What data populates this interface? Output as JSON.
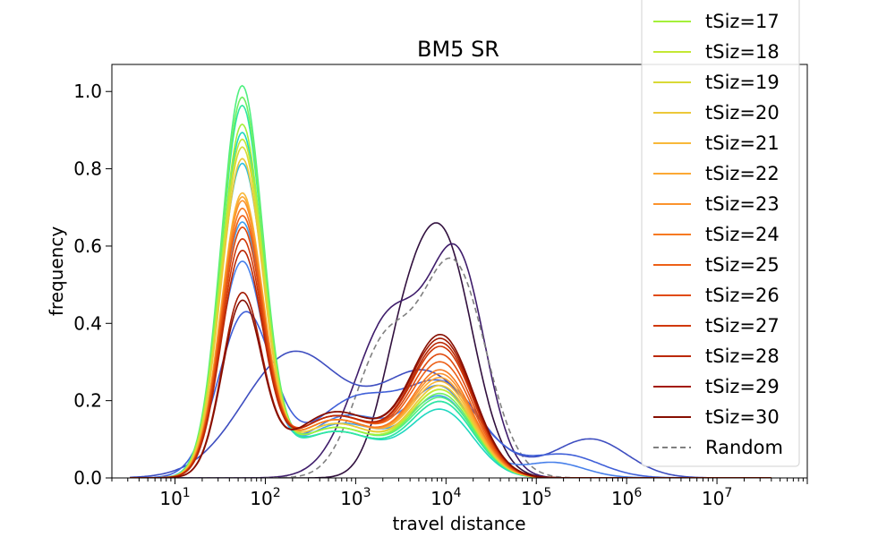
{
  "chart_data": {
    "type": "line",
    "title": "BM5 SR",
    "xlabel": "travel distance",
    "ylabel": "frequency",
    "xscale": "log",
    "xlim": [
      2,
      100000000
    ],
    "ylim": [
      0,
      1.07
    ],
    "x_ticks": [
      10,
      100,
      1000,
      10000,
      100000,
      1000000,
      10000000
    ],
    "x_tick_labels": [
      {
        "base": "10",
        "exp": "1"
      },
      {
        "base": "10",
        "exp": "2"
      },
      {
        "base": "10",
        "exp": "3"
      },
      {
        "base": "10",
        "exp": "4"
      },
      {
        "base": "10",
        "exp": "5"
      },
      {
        "base": "10",
        "exp": "6"
      },
      {
        "base": "10",
        "exp": "7"
      }
    ],
    "y_ticks": [
      0.0,
      0.2,
      0.4,
      0.6,
      0.8,
      1.0
    ],
    "y_tick_labels": [
      "0.0",
      "0.2",
      "0.4",
      "0.6",
      "0.8",
      "1.0"
    ],
    "grid": false,
    "legend_position": "top-right",
    "legend": [
      {
        "label": "tSiz=17",
        "color": "#a4f03a",
        "dashed": false
      },
      {
        "label": "tSiz=18",
        "color": "#c4e834",
        "dashed": false
      },
      {
        "label": "tSiz=19",
        "color": "#d9d936",
        "dashed": false
      },
      {
        "label": "tSiz=20",
        "color": "#ecc839",
        "dashed": false
      },
      {
        "label": "tSiz=21",
        "color": "#f8b839",
        "dashed": false
      },
      {
        "label": "tSiz=22",
        "color": "#fca834",
        "dashed": false
      },
      {
        "label": "tSiz=23",
        "color": "#fb932c",
        "dashed": false
      },
      {
        "label": "tSiz=24",
        "color": "#f67a21",
        "dashed": false
      },
      {
        "label": "tSiz=25",
        "color": "#ed6017",
        "dashed": false
      },
      {
        "label": "tSiz=26",
        "color": "#e04a0e",
        "dashed": false
      },
      {
        "label": "tSiz=27",
        "color": "#d03808",
        "dashed": false
      },
      {
        "label": "tSiz=28",
        "color": "#bb2804",
        "dashed": false
      },
      {
        "label": "tSiz=29",
        "color": "#a31a02",
        "dashed": false
      },
      {
        "label": "tSiz=30",
        "color": "#860e01",
        "dashed": false
      },
      {
        "label": "Random",
        "color": "#808080",
        "dashed": true
      }
    ],
    "series": [
      {
        "color": "#31103e",
        "peaks": [
          [
            9000,
            0.62,
            0.34
          ],
          [
            3000,
            0.2,
            0.25
          ]
        ],
        "dashed": false
      },
      {
        "color": "#3f1d6b",
        "peaks": [
          [
            14000,
            0.52,
            0.3
          ],
          [
            2500,
            0.42,
            0.4
          ]
        ],
        "dashed": false
      },
      {
        "color": "#808080",
        "peaks": [
          [
            12000,
            0.55,
            0.36
          ],
          [
            2000,
            0.32,
            0.32
          ]
        ],
        "dashed": true
      },
      {
        "color": "#3e4ec0",
        "peaks": [
          [
            200,
            0.32,
            0.55
          ],
          [
            6000,
            0.27,
            0.55
          ],
          [
            400000,
            0.1,
            0.4
          ]
        ],
        "dashed": false
      },
      {
        "color": "#4060d8",
        "peaks": [
          [
            60,
            0.42,
            0.3
          ],
          [
            1000,
            0.2,
            0.5
          ],
          [
            10000,
            0.22,
            0.42
          ],
          [
            200000,
            0.06,
            0.4
          ]
        ],
        "dashed": false
      },
      {
        "color": "#4880ea",
        "peaks": [
          [
            55,
            0.55,
            0.25
          ],
          [
            800,
            0.16,
            0.5
          ],
          [
            9000,
            0.22,
            0.35
          ],
          [
            150000,
            0.04,
            0.35
          ]
        ],
        "dashed": false
      },
      {
        "color": "#40a0f0",
        "peaks": [
          [
            55,
            0.65,
            0.24
          ],
          [
            700,
            0.14,
            0.5
          ],
          [
            9000,
            0.2,
            0.35
          ]
        ],
        "dashed": false
      },
      {
        "color": "#30c0e0",
        "peaks": [
          [
            55,
            0.8,
            0.24
          ],
          [
            600,
            0.12,
            0.5
          ],
          [
            9000,
            0.19,
            0.35
          ]
        ],
        "dashed": false
      },
      {
        "color": "#20d8c0",
        "peaks": [
          [
            55,
            0.88,
            0.23
          ],
          [
            600,
            0.12,
            0.5
          ],
          [
            9000,
            0.17,
            0.35
          ]
        ],
        "dashed": false
      },
      {
        "color": "#30e8a0",
        "peaks": [
          [
            55,
            0.95,
            0.23
          ],
          [
            600,
            0.12,
            0.5
          ],
          [
            9000,
            0.19,
            0.35
          ]
        ],
        "dashed": false
      },
      {
        "color": "#50f080",
        "peaks": [
          [
            55,
            1.0,
            0.23
          ],
          [
            600,
            0.13,
            0.5
          ],
          [
            9000,
            0.2,
            0.35
          ]
        ],
        "dashed": false
      },
      {
        "color": "#70f060",
        "peaks": [
          [
            55,
            0.97,
            0.23
          ],
          [
            600,
            0.13,
            0.5
          ],
          [
            9000,
            0.21,
            0.35
          ]
        ],
        "dashed": false
      },
      {
        "color": "#a4f03a",
        "peaks": [
          [
            55,
            0.9,
            0.23
          ],
          [
            600,
            0.13,
            0.5
          ],
          [
            9000,
            0.22,
            0.35
          ]
        ],
        "dashed": false
      },
      {
        "color": "#c4e834",
        "peaks": [
          [
            55,
            0.86,
            0.23
          ],
          [
            600,
            0.14,
            0.5
          ],
          [
            9000,
            0.22,
            0.35
          ]
        ],
        "dashed": false
      },
      {
        "color": "#d9d936",
        "peaks": [
          [
            55,
            0.84,
            0.23
          ],
          [
            600,
            0.14,
            0.5
          ],
          [
            9000,
            0.23,
            0.35
          ]
        ],
        "dashed": false
      },
      {
        "color": "#ecc839",
        "peaks": [
          [
            55,
            0.81,
            0.23
          ],
          [
            600,
            0.14,
            0.5
          ],
          [
            9000,
            0.23,
            0.35
          ]
        ],
        "dashed": false
      },
      {
        "color": "#f8b839",
        "peaks": [
          [
            55,
            0.72,
            0.23
          ],
          [
            600,
            0.15,
            0.5
          ],
          [
            9000,
            0.24,
            0.35
          ]
        ],
        "dashed": false
      },
      {
        "color": "#fca834",
        "peaks": [
          [
            55,
            0.71,
            0.23
          ],
          [
            600,
            0.15,
            0.5
          ],
          [
            9000,
            0.25,
            0.35
          ]
        ],
        "dashed": false
      },
      {
        "color": "#fb932c",
        "peaks": [
          [
            55,
            0.7,
            0.23
          ],
          [
            600,
            0.15,
            0.5
          ],
          [
            9000,
            0.26,
            0.35
          ]
        ],
        "dashed": false
      },
      {
        "color": "#f67a21",
        "peaks": [
          [
            55,
            0.68,
            0.23
          ],
          [
            600,
            0.15,
            0.5
          ],
          [
            9000,
            0.27,
            0.35
          ]
        ],
        "dashed": false
      },
      {
        "color": "#ed6017",
        "peaks": [
          [
            55,
            0.66,
            0.23
          ],
          [
            600,
            0.16,
            0.5
          ],
          [
            9000,
            0.29,
            0.35
          ]
        ],
        "dashed": false
      },
      {
        "color": "#e04a0e",
        "peaks": [
          [
            55,
            0.63,
            0.23
          ],
          [
            600,
            0.16,
            0.5
          ],
          [
            9000,
            0.31,
            0.35
          ]
        ],
        "dashed": false
      },
      {
        "color": "#d03808",
        "peaks": [
          [
            55,
            0.6,
            0.23
          ],
          [
            600,
            0.16,
            0.5
          ],
          [
            9000,
            0.33,
            0.35
          ]
        ],
        "dashed": false
      },
      {
        "color": "#bb2804",
        "peaks": [
          [
            55,
            0.57,
            0.23
          ],
          [
            600,
            0.16,
            0.5
          ],
          [
            9000,
            0.34,
            0.35
          ]
        ],
        "dashed": false
      },
      {
        "color": "#a31a02",
        "peaks": [
          [
            55,
            0.46,
            0.22
          ],
          [
            600,
            0.17,
            0.5
          ],
          [
            9000,
            0.35,
            0.35
          ]
        ],
        "dashed": false
      },
      {
        "color": "#860e01",
        "peaks": [
          [
            55,
            0.44,
            0.22
          ],
          [
            600,
            0.17,
            0.5
          ],
          [
            9000,
            0.36,
            0.35
          ]
        ],
        "dashed": false
      }
    ]
  }
}
